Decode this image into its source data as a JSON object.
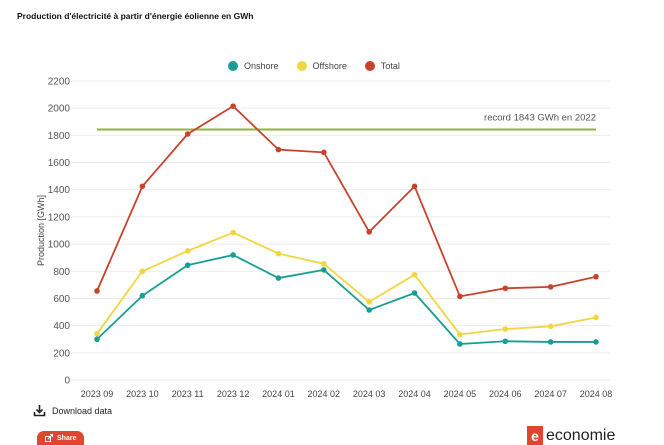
{
  "header": {
    "title": "Production d'électricité à partir d'énergie éolienne en GWh"
  },
  "legend": {
    "items": [
      {
        "label": "Onshore",
        "color": "#1a9e94"
      },
      {
        "label": "Offshore",
        "color": "#f2d541"
      },
      {
        "label": "Total",
        "color": "#c8432d"
      }
    ]
  },
  "footer": {
    "download_label": "Download data",
    "share_label": "Share",
    "logo_text": "economie"
  },
  "chart_data": {
    "type": "line",
    "title": "Production d'électricité à partir d'énergie éolienne en GWh",
    "xlabel": "",
    "ylabel": "Production [GWh]",
    "ylim": [
      0,
      2200
    ],
    "yticks": [
      0,
      200,
      400,
      600,
      800,
      1000,
      1200,
      1400,
      1600,
      1800,
      2000,
      2200
    ],
    "categories": [
      "2023 09",
      "2023 10",
      "2023 11",
      "2023 12",
      "2024 01",
      "2024 02",
      "2024 03",
      "2024 04",
      "2024 05",
      "2024 06",
      "2024 07",
      "2024 08"
    ],
    "series": [
      {
        "name": "Onshore",
        "color": "#1a9e94",
        "values": [
          300,
          620,
          845,
          920,
          750,
          810,
          515,
          640,
          265,
          285,
          280,
          280
        ]
      },
      {
        "name": "Offshore",
        "color": "#f2d541",
        "values": [
          340,
          800,
          950,
          1085,
          930,
          855,
          575,
          775,
          335,
          375,
          395,
          460
        ]
      },
      {
        "name": "Total",
        "color": "#c8432d",
        "values": [
          655,
          1425,
          1810,
          2015,
          1695,
          1675,
          1090,
          1425,
          615,
          675,
          685,
          760
        ]
      }
    ],
    "reference_line": {
      "value": 1843,
      "label": "record 1843 GWh en 2022",
      "color": "#8cb43c"
    },
    "grid": true,
    "legend_position": "top-center"
  }
}
